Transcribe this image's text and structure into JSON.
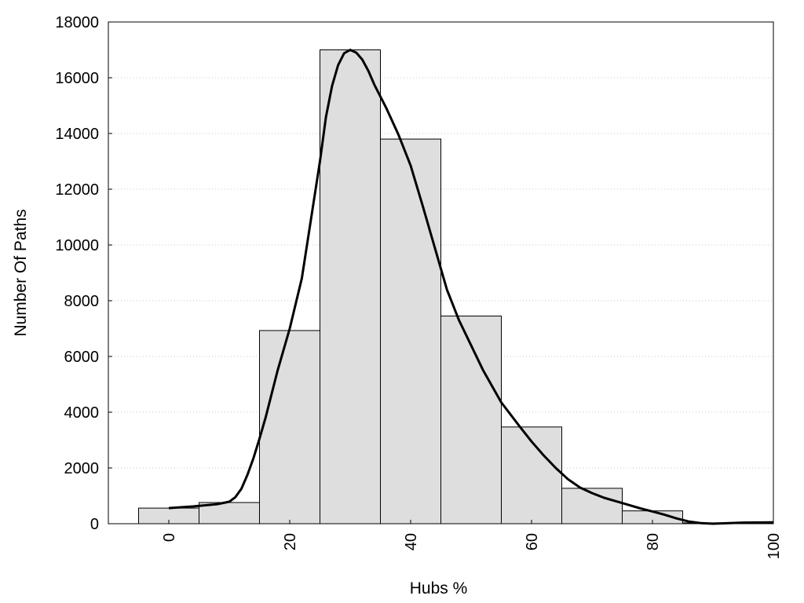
{
  "chart_data": {
    "type": "bar",
    "title": "",
    "xlabel": "Hubs %",
    "ylabel": "Number Of Paths",
    "xlim": [
      -10,
      100
    ],
    "ylim": [
      0,
      18000
    ],
    "grid": "horizontal-dotted",
    "legend": "none",
    "bar_color": "#dedede",
    "edge_color": "#000000",
    "line_color": "#000000",
    "x_ticks": [
      0,
      20,
      40,
      60,
      80,
      100
    ],
    "y_ticks": [
      0,
      2000,
      4000,
      6000,
      8000,
      10000,
      12000,
      14000,
      16000,
      18000
    ],
    "bins": [
      {
        "start": -5,
        "end": 5,
        "value": 560
      },
      {
        "start": 5,
        "end": 15,
        "value": 760
      },
      {
        "start": 15,
        "end": 25,
        "value": 6930
      },
      {
        "start": 25,
        "end": 35,
        "value": 17000
      },
      {
        "start": 35,
        "end": 45,
        "value": 13800
      },
      {
        "start": 45,
        "end": 55,
        "value": 7450
      },
      {
        "start": 55,
        "end": 65,
        "value": 3470
      },
      {
        "start": 65,
        "end": 75,
        "value": 1270
      },
      {
        "start": 75,
        "end": 85,
        "value": 460
      },
      {
        "start": 85,
        "end": 95,
        "value": 30
      },
      {
        "start": 95,
        "end": 105,
        "value": 50
      }
    ],
    "density_curve": {
      "x": [
        0,
        4,
        8,
        10,
        11,
        12,
        13,
        14,
        15,
        16,
        18,
        20,
        22,
        24,
        25,
        26,
        27,
        28,
        29,
        30,
        31,
        32,
        33,
        34,
        36,
        38,
        40,
        42,
        44,
        46,
        48,
        50,
        52,
        55,
        58,
        60,
        62,
        64,
        66,
        68,
        70,
        72,
        75,
        78,
        80,
        82,
        84,
        86,
        88,
        90,
        95,
        100
      ],
      "y": [
        560,
        620,
        700,
        790,
        950,
        1250,
        1750,
        2350,
        3050,
        3800,
        5500,
        7000,
        8800,
        11600,
        13000,
        14600,
        15700,
        16450,
        16880,
        17000,
        16900,
        16650,
        16250,
        15750,
        14900,
        13950,
        12850,
        11400,
        9900,
        8400,
        7300,
        6400,
        5500,
        4350,
        3500,
        2950,
        2450,
        2000,
        1600,
        1300,
        1100,
        930,
        740,
        550,
        440,
        320,
        190,
        80,
        20,
        0,
        40,
        50
      ]
    }
  }
}
